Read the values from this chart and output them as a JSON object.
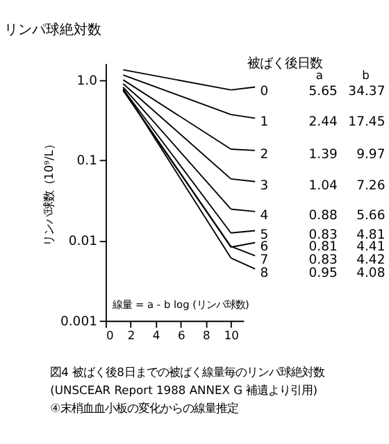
{
  "chart_data": {
    "type": "line",
    "title": "リンパ球絶対数",
    "ylabel": "リンパ球数（10⁹/L）",
    "legend_title": "被ばく後日数",
    "log": "y",
    "grid": false,
    "marker": "none",
    "line_style": "solid",
    "legend": "right",
    "x": [
      1.4,
      10
    ],
    "series": [
      {
        "name": "0",
        "color": "#000000",
        "values": [
          1.33,
          0.747
        ]
      },
      {
        "name": "1",
        "color": "#000000",
        "values": [
          1.147,
          0.369
        ]
      },
      {
        "name": "2",
        "color": "#000000",
        "values": [
          0.998,
          0.137
        ]
      },
      {
        "name": "3",
        "color": "#000000",
        "values": [
          0.892,
          0.0583
        ]
      },
      {
        "name": "4",
        "color": "#000000",
        "values": [
          0.809,
          0.0245
        ]
      },
      {
        "name": "5",
        "color": "#000000",
        "values": [
          0.761,
          0.0124
        ]
      },
      {
        "name": "6",
        "color": "#000000",
        "values": [
          0.735,
          0.00824
        ]
      },
      {
        "name": "7",
        "color": "#000000",
        "values": [
          0.743,
          0.00842
        ]
      },
      {
        "name": "8",
        "color": "#000000",
        "values": [
          0.776,
          0.00605
        ]
      }
    ],
    "xlim": [
      0,
      11
    ],
    "xticks": [
      0,
      2,
      4,
      6,
      8,
      10
    ],
    "ylim": [
      0.001,
      1.6
    ],
    "yticks": [
      {
        "value": 0.001,
        "label": "0.001"
      },
      {
        "value": 0.01,
        "label": "0.01"
      },
      {
        "value": 0.1,
        "label": "0.1"
      },
      {
        "value": 1,
        "label": "1.0"
      }
    ],
    "annotations": [
      "線量 = a - b log (リンパ球数)",
      "図4 被ばく後8日までの被ばく線量毎のリンパ球絶対数",
      "(UNSCEAR Report 1988 ANNEX G 補遺より引用)",
      "④末梢血血小板の変化からの線量推定",
      "a",
      "b",
      "5.65",
      "34.37",
      "2.44",
      "17.45",
      "1.39",
      "9.97",
      "1.04",
      "7.26",
      "0.88",
      "5.66",
      "0.83",
      "4.81",
      "0.81",
      "4.41",
      "0.83",
      "4.42",
      "0.95",
      "4.08"
    ]
  }
}
